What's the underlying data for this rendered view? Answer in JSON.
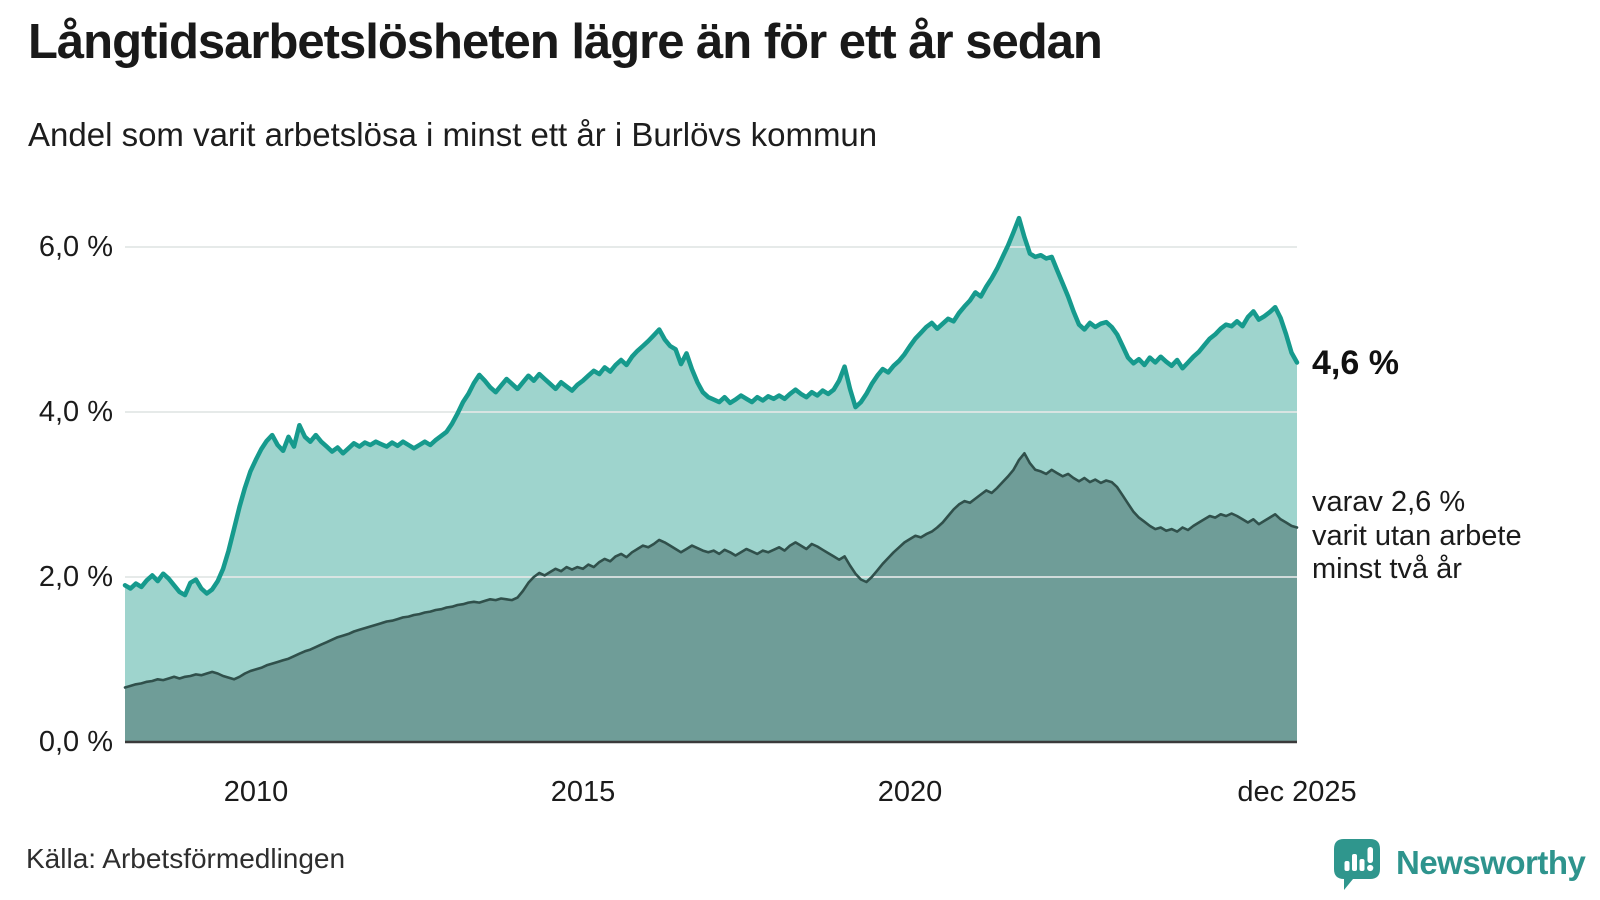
{
  "header": {
    "title": "Långtidsarbetslösheten lägre än för ett år sedan",
    "subtitle": "Andel som varit arbetslösa i minst ett år i Burlövs kommun"
  },
  "chart_data": {
    "type": "area",
    "unit": "%",
    "x_range": {
      "start": "jan 2008",
      "end": "dec 2025",
      "interval": "month"
    },
    "ylim": [
      0,
      6.6
    ],
    "grid": true,
    "y_ticks": [
      {
        "value": 0,
        "label": "0,0 %"
      },
      {
        "value": 2,
        "label": "2,0 %"
      },
      {
        "value": 4,
        "label": "4,0 %"
      },
      {
        "value": 6,
        "label": "6,0 %"
      }
    ],
    "x_ticks": [
      {
        "index": 24,
        "label": "2010"
      },
      {
        "index": 84,
        "label": "2015"
      },
      {
        "index": 144,
        "label": "2020"
      },
      {
        "index": 215,
        "label": "dec 2025"
      }
    ],
    "series": [
      {
        "name": "Andel arbetslösa minst ett år",
        "line_color": "#169a8d",
        "fill_color": "#9ed4cd",
        "last_value": 4.6,
        "values": [
          1.9,
          1.86,
          1.92,
          1.88,
          1.96,
          2.02,
          1.95,
          2.04,
          1.98,
          1.9,
          1.82,
          1.78,
          1.93,
          1.97,
          1.86,
          1.8,
          1.85,
          1.95,
          2.1,
          2.32,
          2.58,
          2.85,
          3.08,
          3.28,
          3.42,
          3.55,
          3.65,
          3.72,
          3.6,
          3.53,
          3.7,
          3.58,
          3.84,
          3.7,
          3.64,
          3.72,
          3.64,
          3.58,
          3.52,
          3.57,
          3.5,
          3.56,
          3.62,
          3.58,
          3.63,
          3.6,
          3.64,
          3.61,
          3.58,
          3.63,
          3.59,
          3.64,
          3.6,
          3.56,
          3.6,
          3.64,
          3.6,
          3.66,
          3.71,
          3.76,
          3.86,
          3.98,
          4.12,
          4.22,
          4.35,
          4.45,
          4.38,
          4.3,
          4.24,
          4.32,
          4.4,
          4.34,
          4.28,
          4.36,
          4.44,
          4.38,
          4.46,
          4.4,
          4.34,
          4.28,
          4.36,
          4.31,
          4.26,
          4.33,
          4.38,
          4.44,
          4.5,
          4.46,
          4.54,
          4.49,
          4.57,
          4.63,
          4.57,
          4.67,
          4.74,
          4.8,
          4.86,
          4.93,
          5.0,
          4.88,
          4.8,
          4.76,
          4.58,
          4.71,
          4.52,
          4.36,
          4.24,
          4.18,
          4.15,
          4.12,
          4.18,
          4.11,
          4.15,
          4.2,
          4.16,
          4.12,
          4.18,
          4.14,
          4.19,
          4.16,
          4.2,
          4.16,
          4.22,
          4.27,
          4.22,
          4.18,
          4.24,
          4.2,
          4.26,
          4.22,
          4.27,
          4.38,
          4.55,
          4.28,
          4.06,
          4.12,
          4.22,
          4.34,
          4.44,
          4.52,
          4.48,
          4.56,
          4.62,
          4.7,
          4.8,
          4.89,
          4.96,
          5.03,
          5.08,
          5.01,
          5.07,
          5.13,
          5.1,
          5.2,
          5.28,
          5.35,
          5.45,
          5.4,
          5.52,
          5.62,
          5.74,
          5.88,
          6.02,
          6.18,
          6.35,
          6.12,
          5.92,
          5.88,
          5.9,
          5.86,
          5.88,
          5.72,
          5.56,
          5.4,
          5.22,
          5.06,
          5.0,
          5.08,
          5.03,
          5.07,
          5.09,
          5.03,
          4.94,
          4.8,
          4.66,
          4.59,
          4.64,
          4.57,
          4.66,
          4.6,
          4.67,
          4.61,
          4.56,
          4.63,
          4.53,
          4.6,
          4.67,
          4.73,
          4.81,
          4.89,
          4.94,
          5.01,
          5.06,
          5.04,
          5.1,
          5.04,
          5.15,
          5.22,
          5.12,
          5.16,
          5.21,
          5.27,
          5.14,
          4.94,
          4.72,
          4.6
        ]
      },
      {
        "name": "Andel utan arbete minst två år",
        "line_color": "#30504b",
        "fill_color": "#6f9d98",
        "last_value": 2.6,
        "values": [
          0.66,
          0.68,
          0.7,
          0.71,
          0.73,
          0.74,
          0.76,
          0.75,
          0.77,
          0.79,
          0.77,
          0.79,
          0.8,
          0.82,
          0.81,
          0.83,
          0.85,
          0.83,
          0.8,
          0.78,
          0.76,
          0.79,
          0.83,
          0.86,
          0.88,
          0.9,
          0.93,
          0.95,
          0.97,
          0.99,
          1.01,
          1.04,
          1.07,
          1.1,
          1.12,
          1.15,
          1.18,
          1.21,
          1.24,
          1.27,
          1.29,
          1.31,
          1.34,
          1.36,
          1.38,
          1.4,
          1.42,
          1.44,
          1.46,
          1.47,
          1.49,
          1.51,
          1.52,
          1.54,
          1.55,
          1.57,
          1.58,
          1.6,
          1.61,
          1.63,
          1.64,
          1.66,
          1.67,
          1.69,
          1.7,
          1.69,
          1.71,
          1.73,
          1.72,
          1.74,
          1.73,
          1.72,
          1.75,
          1.83,
          1.93,
          2.0,
          2.05,
          2.02,
          2.06,
          2.1,
          2.07,
          2.12,
          2.09,
          2.12,
          2.1,
          2.15,
          2.12,
          2.18,
          2.22,
          2.19,
          2.25,
          2.28,
          2.24,
          2.3,
          2.34,
          2.38,
          2.36,
          2.4,
          2.45,
          2.42,
          2.38,
          2.34,
          2.3,
          2.34,
          2.38,
          2.35,
          2.32,
          2.3,
          2.32,
          2.28,
          2.33,
          2.3,
          2.26,
          2.3,
          2.34,
          2.31,
          2.28,
          2.32,
          2.3,
          2.33,
          2.36,
          2.32,
          2.38,
          2.42,
          2.38,
          2.34,
          2.4,
          2.37,
          2.33,
          2.29,
          2.25,
          2.21,
          2.25,
          2.14,
          2.04,
          1.97,
          1.94,
          2.0,
          2.08,
          2.16,
          2.23,
          2.3,
          2.36,
          2.42,
          2.46,
          2.5,
          2.48,
          2.52,
          2.55,
          2.6,
          2.66,
          2.74,
          2.82,
          2.88,
          2.92,
          2.9,
          2.95,
          3.0,
          3.05,
          3.02,
          3.08,
          3.15,
          3.22,
          3.3,
          3.42,
          3.5,
          3.38,
          3.3,
          3.28,
          3.25,
          3.3,
          3.26,
          3.22,
          3.25,
          3.2,
          3.16,
          3.2,
          3.15,
          3.18,
          3.14,
          3.17,
          3.15,
          3.09,
          2.99,
          2.89,
          2.79,
          2.72,
          2.67,
          2.62,
          2.58,
          2.6,
          2.56,
          2.58,
          2.55,
          2.6,
          2.57,
          2.62,
          2.66,
          2.7,
          2.74,
          2.72,
          2.76,
          2.74,
          2.77,
          2.74,
          2.7,
          2.66,
          2.7,
          2.64,
          2.68,
          2.72,
          2.76,
          2.7,
          2.66,
          2.62,
          2.6
        ]
      }
    ],
    "annotations": {
      "end_label": "4,6 %",
      "sub_label_lines": [
        "varav 2,6 %",
        "varit utan arbete",
        "minst två år"
      ]
    }
  },
  "footer": {
    "source": "Källa: Arbetsförmedlingen",
    "brand": "Newsworthy"
  },
  "colors": {
    "accent_teal": "#169a8d",
    "light_fill": "#9ed4cd",
    "dark_fill": "#6f9d98",
    "dark_line": "#30504b",
    "brand_teal": "#2e948d",
    "gridline": "#e2e6e5"
  }
}
